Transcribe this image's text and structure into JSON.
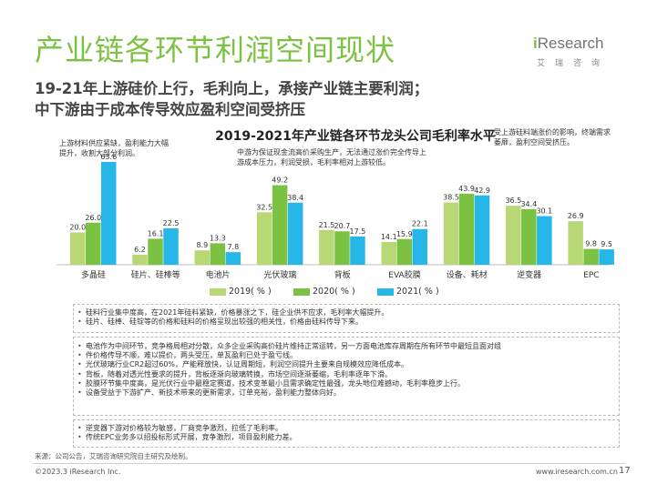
{
  "page": {
    "title": "产业链各环节利润空间现状",
    "subtitle_line1": "19-21年上游硅价上行，毛利向上，承接产业链主要利润；",
    "subtitle_line2": "中下游由于成本传导效应盈利空间受挤压"
  },
  "logo": {
    "mark": "i",
    "word": "Research",
    "cn": "艾瑞咨询"
  },
  "colors": {
    "title_green": "#7cc242",
    "series": [
      "#b7d874",
      "#7cc242",
      "#27b6e8"
    ]
  },
  "chart_data": {
    "type": "bar",
    "title": "2019-2021年产业链各环节龙头公司毛利率水平",
    "categories": [
      "多晶硅",
      "硅片、硅棒等",
      "电池片",
      "光伏玻璃",
      "背板",
      "EVA胶膜",
      "设备、耗材",
      "逆变器",
      "EPC"
    ],
    "series": [
      {
        "name": "2019( % )",
        "values": [
          20.0,
          6.2,
          8.9,
          32.5,
          21.5,
          14.1,
          38.5,
          36.5,
          26.9
        ]
      },
      {
        "name": "2020( % )",
        "values": [
          26.0,
          16.1,
          13.3,
          49.2,
          20.7,
          15.9,
          43.9,
          34.4,
          9.8
        ]
      },
      {
        "name": "2021( % )",
        "values": [
          63.6,
          22.5,
          7.8,
          38.4,
          17.5,
          22.1,
          42.9,
          30.1,
          9.5
        ]
      }
    ],
    "value_labels": [
      [
        "20.0",
        "6.2",
        "8.9",
        "32.5",
        "21.5",
        "14.1",
        "38.5",
        "36.5",
        "26.9"
      ],
      [
        "26.0",
        "16.1",
        "13.3",
        "49.2",
        "20.7",
        "15.9",
        "43.9",
        "34.4",
        "9.8"
      ],
      [
        "63.6",
        "22.5",
        "7.8",
        "38.4",
        "17.5",
        "22.1",
        "42.9",
        "30.1",
        "9.5"
      ]
    ],
    "ylim": [
      0,
      70
    ],
    "grid": false,
    "legend_position": "bottom",
    "annotations": [
      "上游材料供应紧缺，盈利能力大幅提升，收割大部分利润。",
      "中游为保证现金流高价采购生产，无法通过涨价完全传导上游成本压力，利润受损，毛利率相对上游较低。",
      "受上游硅料端涨价的影响，终端需求萎靡，盈利空间受挤压。"
    ]
  },
  "analysis": {
    "box1": [
      "硅料行业集中度高，在2021年硅料紧缺，价格暴涨之下，硅企业供不应求，毛利率大幅提升。",
      "硅片、硅棒、硅锭等的价格和硅料的价格呈现出较强的相关性，价格由硅料传导下来。"
    ],
    "box2": [
      "电池作为中间环节，竞争格局相对分散，众多企业采购高价硅片维持正常运转，另一方面电池库存周期在所有环节中最短且面对组",
      "件价格传导不顺，难以提价，两头受压，单瓦盈利已处于盈亏线。",
      "光伏玻璃行业CR2超过60%，产能释放快，认证周期短，利润空间提升主要来自规模效应降低成本。",
      "背板，随着对透光性要求的提升，背板逐渐向玻璃转换，市场空间逐渐萎缩，毛利率逐年下滑。",
      "胶膜环节集中度高，是光伏行业中最稳定赛道，技术变革最小且需求确定性最强，龙头地位难撼动，毛利率稳步上行。",
      "设备受益于下游扩产、新技术带来的更新需求，订单充裕，盈利能力整体向好。"
    ],
    "box3": [
      "逆变器下游对价格较为敏感，厂商竞争激烈，拉低了毛利率。",
      "传统EPC业务多以招投标形式开展，竞争激烈，项目盈利能力差。"
    ]
  },
  "footer": {
    "source": "来源：公司公告，艾瑞咨询研究院自主研究及绘制。",
    "copyright": "©2023.3 iResearch Inc.",
    "website": "www.iresearch.com.cn",
    "page_number": "17"
  }
}
